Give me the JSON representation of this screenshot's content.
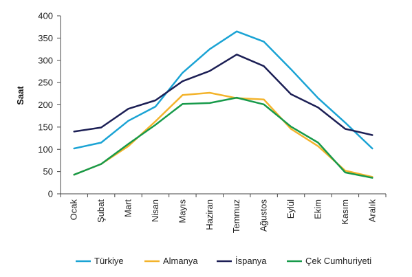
{
  "chart_data": {
    "type": "line",
    "title": "",
    "xlabel": "",
    "ylabel": "Saat",
    "ylim": [
      0,
      400
    ],
    "yticks": [
      0,
      50,
      100,
      150,
      200,
      250,
      300,
      350,
      400
    ],
    "grid": false,
    "legend_position": "bottom",
    "categories": [
      "Ocak",
      "Şubat",
      "Mart",
      "Nisan",
      "Mayıs",
      "Haziran",
      "Temmuz",
      "Ağustos",
      "Eylül",
      "Ekim",
      "Kasım",
      "Aralık"
    ],
    "series": [
      {
        "name": "Türkiye",
        "color": "#1aa3d4",
        "values": [
          102,
          115,
          164,
          196,
          272,
          325,
          365,
          342,
          280,
          215,
          160,
          102
        ]
      },
      {
        "name": "Almanya",
        "color": "#f3b32b",
        "values": [
          43,
          67,
          107,
          163,
          222,
          227,
          215,
          212,
          146,
          107,
          52,
          38
        ]
      },
      {
        "name": "İspanya",
        "color": "#1c1f55",
        "values": [
          140,
          149,
          191,
          210,
          253,
          276,
          313,
          287,
          224,
          194,
          146,
          132
        ]
      },
      {
        "name": "Çek Cumhuriyeti",
        "color": "#179a4a",
        "values": [
          43,
          67,
          112,
          155,
          202,
          204,
          216,
          201,
          151,
          115,
          48,
          36
        ]
      }
    ]
  }
}
